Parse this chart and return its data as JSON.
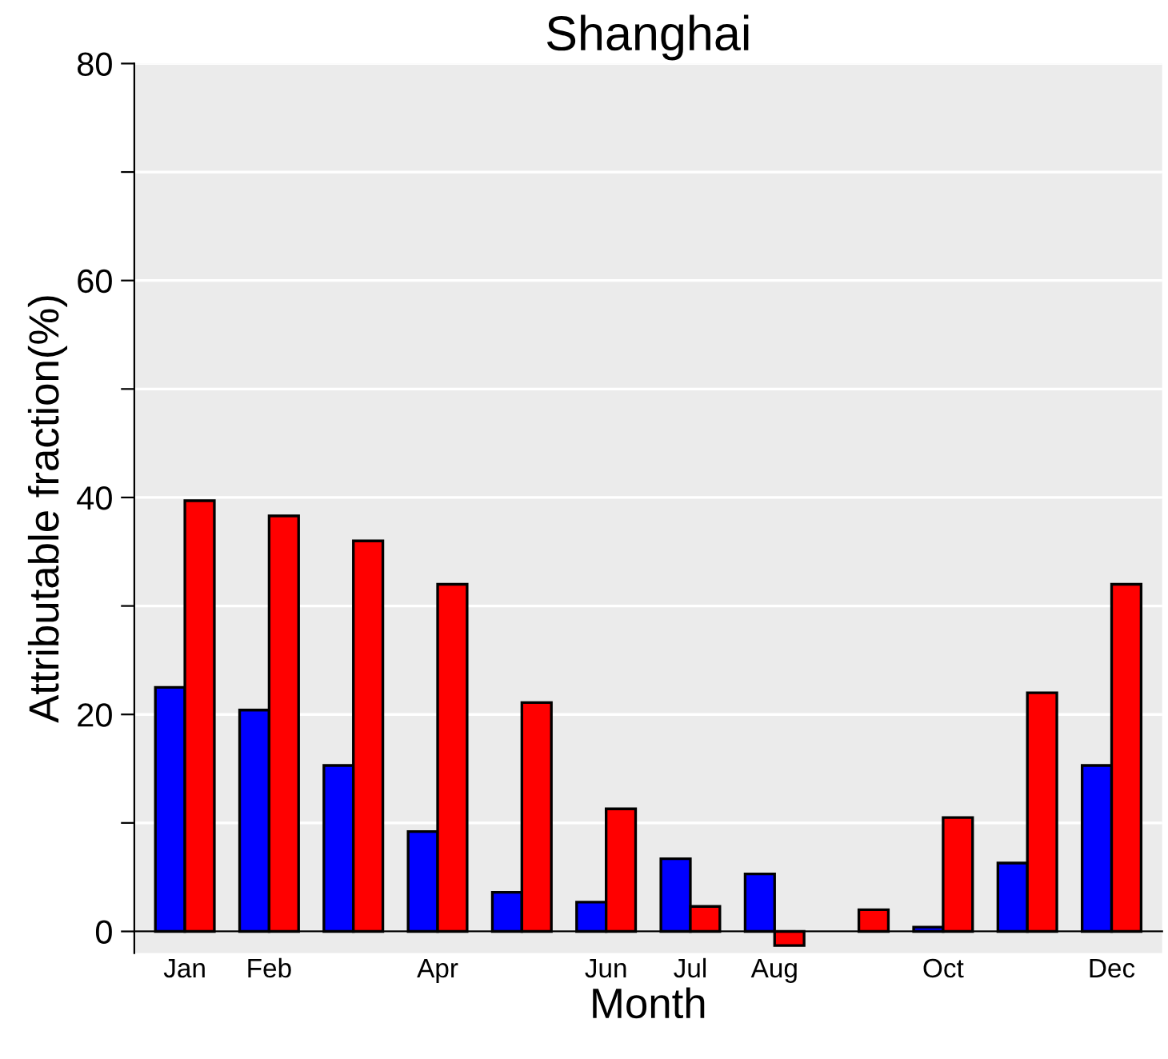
{
  "chart_data": {
    "type": "bar",
    "title": "Shanghai",
    "xlabel": "Month",
    "ylabel": "Attributable fraction(%)",
    "categories": [
      "Jan",
      "Feb",
      null,
      "Apr",
      null,
      "Jun",
      "Jul",
      "Aug",
      null,
      "Oct",
      null,
      "Dec"
    ],
    "series": [
      {
        "color": "#0000ff",
        "values": [
          22.5,
          20.4,
          15.3,
          9.2,
          3.6,
          2.7,
          6.7,
          5.3,
          null,
          0.4,
          6.3,
          15.3
        ]
      },
      {
        "color": "#ff0000",
        "values": [
          39.7,
          38.3,
          36.0,
          32.0,
          21.1,
          11.3,
          2.3,
          -1.3,
          2.0,
          10.5,
          22.0,
          32.0
        ]
      }
    ],
    "ylim": [
      -2,
      80
    ],
    "yticks": [
      0,
      {
        "value": 10,
        "label": null
      },
      20,
      {
        "value": 30,
        "label": null
      },
      40,
      {
        "value": 50,
        "label": null
      },
      60,
      {
        "value": 70,
        "label": null
      },
      80
    ],
    "grid": "y",
    "legend": false
  }
}
